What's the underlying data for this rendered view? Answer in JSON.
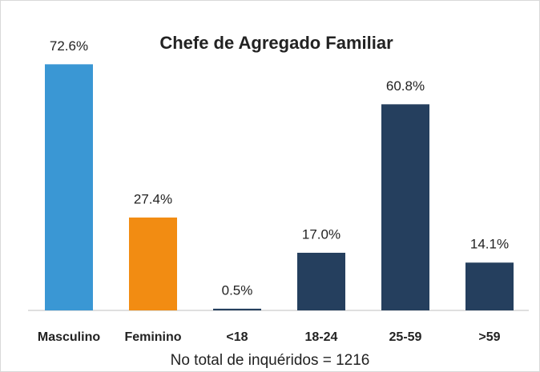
{
  "chart_data": {
    "type": "bar",
    "title": "Chefe de Agregado Familiar",
    "categories": [
      "Masculino",
      "Feminino",
      "<18",
      "18-24",
      "25-59",
      ">59"
    ],
    "values": [
      72.6,
      27.4,
      0.5,
      17.0,
      60.8,
      14.1
    ],
    "value_labels": [
      "72.6%",
      "27.4%",
      "0.5%",
      "17.0%",
      "60.8%",
      "14.1%"
    ],
    "colors": [
      "#3a97d4",
      "#f28c12",
      "#253f5e",
      "#253f5e",
      "#253f5e",
      "#253f5e"
    ],
    "ylim": [
      0,
      80
    ],
    "annotation": "No total de inquéridos = 1216"
  }
}
